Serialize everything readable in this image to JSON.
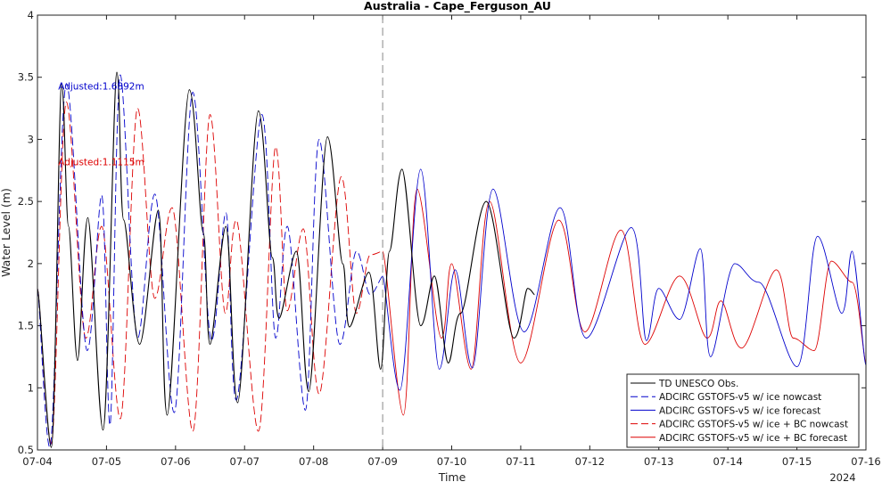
{
  "chart_data": {
    "type": "line",
    "title": "Australia - Cape_Ferguson_AU",
    "xlabel": "Time",
    "ylabel": "Water Level (m)",
    "year_label": "2024",
    "x_ticks": [
      "07-04",
      "07-05",
      "07-06",
      "07-07",
      "07-08",
      "07-09",
      "07-10",
      "07-11",
      "07-12",
      "07-13",
      "07-14",
      "07-15",
      "07-16"
    ],
    "xlim_days": [
      0,
      12
    ],
    "ylim": [
      0.5,
      4
    ],
    "y_ticks": [
      "0.5",
      "1",
      "1.5",
      "2",
      "2.5",
      "3",
      "3.5",
      "4"
    ],
    "grid": false,
    "forecast_start_day": 5,
    "annotations": [
      {
        "text": "Adjusted:1.6892m",
        "color": "#0000cc",
        "x": 0.3,
        "y": 3.4
      },
      {
        "text": "Adjusted:1.1115m",
        "color": "#dd0000",
        "x": 0.3,
        "y": 2.79
      }
    ],
    "legend": {
      "position": "bottom-right",
      "entries": [
        {
          "label": "TD UNESCO Obs.",
          "color": "#000000",
          "dash": "solid"
        },
        {
          "label": "ADCIRC GSTOFS-v5 w/ ice nowcast",
          "color": "#0000cc",
          "dash": "dashed"
        },
        {
          "label": "ADCIRC GSTOFS-v5 w/ ice forecast",
          "color": "#0000cc",
          "dash": "solid"
        },
        {
          "label": "ADCIRC GSTOFS-v5 w/ ice + BC nowcast",
          "color": "#dd0000",
          "dash": "dashed"
        },
        {
          "label": "ADCIRC GSTOFS-v5 w/ ice + BC forecast",
          "color": "#dd0000",
          "dash": "solid"
        }
      ]
    },
    "series": [
      {
        "key": "obs",
        "color": "#000000",
        "dash": "solid",
        "x": [
          0,
          0.2,
          0.35,
          0.45,
          0.58,
          0.73,
          0.95,
          1.15,
          1.25,
          1.48,
          1.75,
          1.88,
          2.2,
          2.4,
          2.5,
          2.73,
          2.9,
          3.2,
          3.4,
          3.5,
          3.75,
          3.93,
          4.2,
          4.42,
          4.52,
          4.8,
          4.97,
          5.1,
          5.28,
          5.55,
          5.75,
          5.95,
          6.13,
          6.5,
          6.9,
          7.1,
          7.2
        ],
        "y": [
          1.8,
          0.52,
          3.45,
          2.3,
          1.22,
          2.37,
          0.66,
          3.54,
          2.35,
          1.35,
          2.43,
          0.78,
          3.4,
          2.25,
          1.35,
          2.3,
          0.88,
          3.23,
          2.05,
          1.56,
          2.1,
          0.97,
          3.02,
          2.0,
          1.49,
          1.93,
          1.15,
          2.1,
          2.76,
          1.5,
          1.9,
          1.2,
          1.6,
          2.5,
          1.4,
          1.8,
          1.75
        ]
      },
      {
        "key": "ice_nowcast",
        "color": "#0000cc",
        "dash": "dashed",
        "x": [
          0,
          0.18,
          0.42,
          0.72,
          0.93,
          1.05,
          1.2,
          1.45,
          1.7,
          1.98,
          2.25,
          2.52,
          2.73,
          2.88,
          3.25,
          3.45,
          3.62,
          3.88,
          4.08,
          4.38,
          4.62,
          4.82,
          5.0
        ],
        "y": [
          1.8,
          0.52,
          3.45,
          1.3,
          2.55,
          0.7,
          3.52,
          1.4,
          2.56,
          0.8,
          3.38,
          1.38,
          2.41,
          0.9,
          3.2,
          1.4,
          2.3,
          0.82,
          3.0,
          1.35,
          2.1,
          1.75,
          1.9
        ]
      },
      {
        "key": "ice_forecast",
        "color": "#0000cc",
        "dash": "solid",
        "x": [
          5.0,
          5.25,
          5.55,
          5.82,
          6.05,
          6.3,
          6.6,
          7.05,
          7.57,
          7.95,
          8.6,
          8.82,
          9.0,
          9.3,
          9.6,
          9.75,
          10.1,
          10.45,
          11.0,
          11.3,
          11.65,
          11.8,
          12.0
        ],
        "y": [
          1.9,
          0.98,
          2.76,
          1.15,
          1.95,
          1.16,
          2.6,
          1.45,
          2.45,
          1.4,
          2.29,
          1.38,
          1.8,
          1.55,
          2.12,
          1.25,
          2.0,
          1.85,
          1.17,
          2.22,
          1.6,
          2.1,
          1.18
        ]
      },
      {
        "key": "bc_nowcast",
        "color": "#dd0000",
        "dash": "dashed",
        "x": [
          0,
          0.2,
          0.42,
          0.7,
          0.93,
          1.2,
          1.45,
          1.7,
          1.95,
          2.25,
          2.5,
          2.72,
          2.88,
          3.2,
          3.45,
          3.62,
          3.85,
          4.08,
          4.4,
          4.62,
          4.82,
          5.0
        ],
        "y": [
          1.8,
          0.55,
          3.3,
          1.4,
          2.3,
          0.75,
          3.25,
          1.72,
          2.45,
          0.65,
          3.2,
          1.6,
          2.35,
          0.65,
          2.94,
          1.62,
          2.28,
          0.95,
          2.7,
          1.6,
          2.07,
          2.1
        ]
      },
      {
        "key": "bc_forecast",
        "color": "#dd0000",
        "dash": "solid",
        "x": [
          5.0,
          5.3,
          5.5,
          5.85,
          6.0,
          6.28,
          6.55,
          7.0,
          7.55,
          7.93,
          8.45,
          8.8,
          9.3,
          9.7,
          9.9,
          10.2,
          10.7,
          10.95,
          11.25,
          11.5,
          11.8,
          12.0
        ],
        "y": [
          2.1,
          0.78,
          2.6,
          1.4,
          2.0,
          1.15,
          2.5,
          1.2,
          2.35,
          1.45,
          2.27,
          1.35,
          1.9,
          1.4,
          1.7,
          1.32,
          1.95,
          1.4,
          1.3,
          2.02,
          1.85,
          1.2
        ]
      }
    ]
  }
}
